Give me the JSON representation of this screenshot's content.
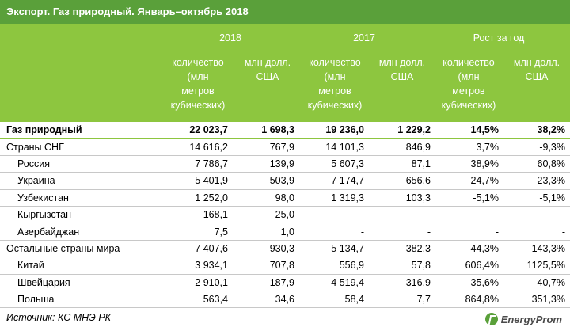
{
  "title": "Экспорт. Газ природный. Январь–октябрь 2018",
  "header": {
    "year_2018": "2018",
    "year_2017": "2017",
    "growth": "Рост за год",
    "qty": [
      "количество",
      "(млн",
      "метров",
      "кубических)"
    ],
    "usd": [
      "млн долл.",
      "США"
    ]
  },
  "rows": [
    {
      "name": "Газ природный",
      "q18": "22 023,7",
      "u18": "1 698,3",
      "q17": "19 236,0",
      "u17": "1 229,2",
      "gq": "14,5%",
      "gu": "38,2%",
      "level": 0,
      "bold": true
    },
    {
      "name": "Страны СНГ",
      "q18": "14 616,2",
      "u18": "767,9",
      "q17": "14 101,3",
      "u17": "846,9",
      "gq": "3,7%",
      "gu": "-9,3%",
      "level": 0
    },
    {
      "name": "Россия",
      "q18": "7 786,7",
      "u18": "139,9",
      "q17": "5 607,3",
      "u17": "87,1",
      "gq": "38,9%",
      "gu": "60,8%",
      "level": 1
    },
    {
      "name": "Украина",
      "q18": "5 401,9",
      "u18": "503,9",
      "q17": "7 174,7",
      "u17": "656,6",
      "gq": "-24,7%",
      "gu": "-23,3%",
      "level": 1
    },
    {
      "name": "Узбекистан",
      "q18": "1 252,0",
      "u18": "98,0",
      "q17": "1 319,3",
      "u17": "103,3",
      "gq": "-5,1%",
      "gu": "-5,1%",
      "level": 1
    },
    {
      "name": "Кыргызстан",
      "q18": "168,1",
      "u18": "25,0",
      "q17": "-",
      "u17": "-",
      "gq": "-",
      "gu": "-",
      "level": 1
    },
    {
      "name": "Азербайджан",
      "q18": "7,5",
      "u18": "1,0",
      "q17": "-",
      "u17": "-",
      "gq": "-",
      "gu": "-",
      "level": 1
    },
    {
      "name": "Остальные страны мира",
      "q18": "7 407,6",
      "u18": "930,3",
      "q17": "5 134,7",
      "u17": "382,3",
      "gq": "44,3%",
      "gu": "143,3%",
      "level": 0
    },
    {
      "name": "Китай",
      "q18": "3 934,1",
      "u18": "707,8",
      "q17": "556,9",
      "u17": "57,8",
      "gq": "606,4%",
      "gu": "1125,5%",
      "level": 1
    },
    {
      "name": "Швейцария",
      "q18": "2 910,1",
      "u18": "187,9",
      "q17": "4 519,4",
      "u17": "316,9",
      "gq": "-35,6%",
      "gu": "-40,7%",
      "level": 1
    },
    {
      "name": "Польша",
      "q18": "563,4",
      "u18": "34,6",
      "q17": "58,4",
      "u17": "7,7",
      "gq": "864,8%",
      "gu": "351,3%",
      "level": 1
    }
  ],
  "footer": {
    "source": "Источник: КС МНЭ РК",
    "logo_text": "EnergyProm",
    "logo_icon": "energyprom-logo-icon"
  }
}
